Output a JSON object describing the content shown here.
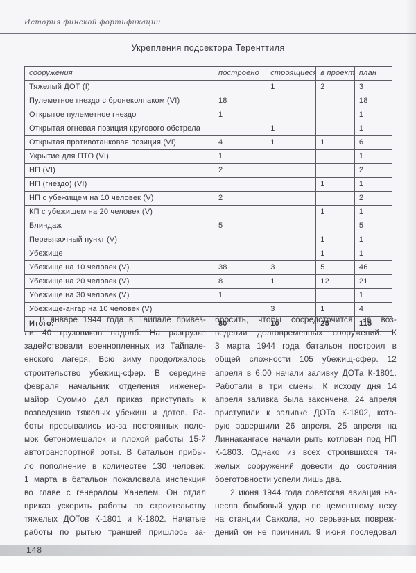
{
  "page": {
    "running_header": "История финской фортификации",
    "title": "Укрепления подсектора Теренттиля",
    "page_number": "148",
    "colors": {
      "page_background": "#f6f6f8",
      "text": "#3c3c42",
      "rule": "#73737b",
      "footer_bar": "#cfd0d3"
    }
  },
  "table": {
    "headers": [
      "сооружения",
      "построено",
      "строящиеся",
      "в проекте",
      "план"
    ],
    "rows": [
      [
        "Тяжелый ДОТ (I)",
        "",
        "1",
        "2",
        "3"
      ],
      [
        "Пулеметное гнездо с бронеколпаком (VI)",
        "18",
        "",
        "",
        "18"
      ],
      [
        "Открытое пулеметное гнездо",
        "1",
        "",
        "",
        "1"
      ],
      [
        "Открытая огневая позиция кругового обстрела",
        "",
        "1",
        "",
        "1"
      ],
      [
        "Открытая противотанковая позиция (VI)",
        "4",
        "1",
        "1",
        "6"
      ],
      [
        "Укрытие для ПТО (VI)",
        "1",
        "",
        "",
        "1"
      ],
      [
        "НП (VI)",
        "2",
        "",
        "",
        "2"
      ],
      [
        "НП (гнездо) (VI)",
        "",
        "",
        "1",
        "1"
      ],
      [
        "НП с убежищем на 10 человек (V)",
        "2",
        "",
        "",
        "2"
      ],
      [
        "КП с убежищем на 20 человек (V)",
        "",
        "",
        "1",
        "1"
      ],
      [
        "Блиндаж",
        "5",
        "",
        "",
        "5"
      ],
      [
        "Перевязочный пункт (V)",
        "",
        "",
        "1",
        "1"
      ],
      [
        "Убежище",
        "",
        "",
        "1",
        "1"
      ],
      [
        "Убежище на 10 человек (V)",
        "38",
        "3",
        "5",
        "46"
      ],
      [
        "Убежище на 20 человек (V)",
        "8",
        "1",
        "12",
        "21"
      ],
      [
        "Убежище на 30 человек (V)",
        "1",
        "",
        "",
        "1"
      ],
      [
        "Убежище-ангар на 10 человек (V)",
        "",
        "3",
        "1",
        "4"
      ]
    ],
    "total_row": [
      "Итого:",
      "80",
      "10",
      "25",
      "115"
    ]
  },
  "body": {
    "columns": [
      {
        "paragraphs": [
          {
            "indent": true,
            "continues": true,
            "lines": [
              "В январе 1944 года в Тайпале привез-",
              "ли 40 грузовиков надолб. На разгрузке",
              "задействовали военнопленных из Тайпале-",
              "енского лагеря. Всю зиму продолжалось",
              "строительство убежищ-сфер. В середине",
              "февраля начальник отделения инженер-",
              "майор Суомио дал приказ приступать к",
              "возведению тяжелых убежищ и дотов. Ра-",
              "боты прерывались из-за постоянных поло-",
              "мок бетономешалок и плохой работы 15-й",
              "автотранспортной роты. В батальон прибы-",
              "ло пополнение в количестве 130 человек.",
              "1 марта в батальон пожаловала инспекция",
              "во главе с генералом Ханелем. Он отдал",
              "приказ ускорить работы по строительству",
              "тяжелых ДОТов К-1801 и К-1802. Начатые",
              "работы по рытью траншей пришлось за-"
            ]
          }
        ]
      },
      {
        "paragraphs": [
          {
            "indent": false,
            "continues": false,
            "lines": [
              "бросить, чтобы сосредоточится на воз-",
              "ведении долговременных сооружений. К",
              "3 марта 1944 года батальон построил в",
              "общей сложности 105 убежищ-сфер. 12",
              "апреля в 6.00 начали заливку ДОТа К-1801.",
              "Работали в три смены. К исходу дня 14",
              "апреля заливка была закончена. 24 апреля",
              "приступили к заливке ДОТа К-1802, кото-",
              "рую завершили 26 апреля. 25 апреля на",
              "Линнакангасе начали рыть котлован под НП",
              "К-1803. Однако из всех строившихся тя-",
              "желых сооружений довести до состояния",
              "боеготовности успели лишь два."
            ]
          },
          {
            "indent": true,
            "continues": true,
            "lines": [
              "2 июня 1944 года советская авиация на-",
              "несла бомбовый удар по цементному цеху",
              "на станции Саккола, но серьезных повреж-",
              "дений он не причинил. 9 июня последовал"
            ]
          }
        ]
      }
    ]
  }
}
